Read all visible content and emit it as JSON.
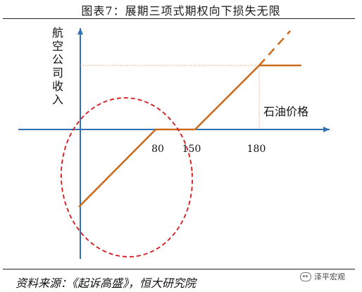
{
  "header": {
    "title": "图表7：展期三项式期权向下损失无限"
  },
  "diagram": {
    "y_axis_label": "航空公司收入",
    "x_axis_label": "石油价格",
    "ticks": [
      "80",
      "150",
      "180"
    ],
    "colors": {
      "axis": "#2f6fb3",
      "payoff": "#cc6b1e",
      "circle": "#d8161b",
      "guide": "#e5a070"
    }
  },
  "footer": {
    "source": "资料来源：《起诉高盛》，恒大研究院",
    "watermark": "泽平宏观"
  }
}
